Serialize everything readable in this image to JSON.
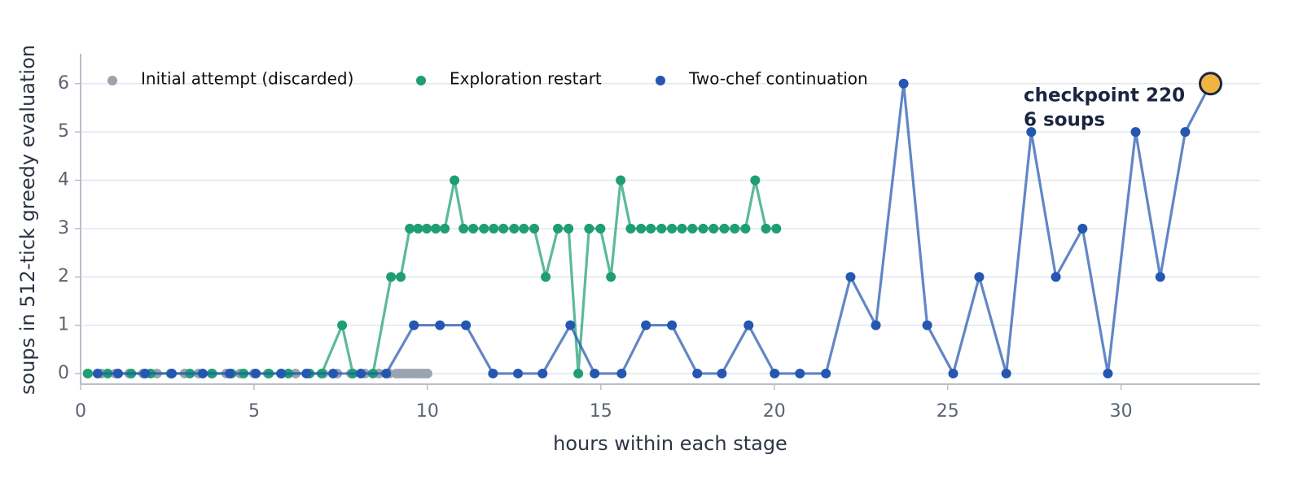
{
  "chart_data": {
    "type": "line",
    "xlabel": "hours within each stage",
    "ylabel": "soups in 512-tick greedy evaluation",
    "xlim": [
      0,
      34
    ],
    "xticks": [
      0,
      5,
      10,
      15,
      20,
      25,
      30
    ],
    "ylim": [
      -0.22,
      6.62
    ],
    "yticks": [
      0,
      1,
      2,
      3,
      4,
      5,
      6
    ],
    "grid": true,
    "legend": "upper-left",
    "series": [
      {
        "name": "Initial attempt (discarded)",
        "color": "#9aa3b0",
        "line": false,
        "x": [
          0.2,
          0.6,
          1.0,
          1.4,
          1.8,
          2.2,
          2.6,
          3.0,
          3.4,
          3.8,
          4.2,
          4.6,
          5.0,
          5.4,
          5.8,
          6.2,
          6.6,
          7.0,
          7.4,
          7.8,
          8.2,
          8.6,
          8.9,
          9.1,
          9.2,
          9.3,
          9.4,
          9.5,
          9.6,
          9.7,
          9.8,
          9.9,
          10.0
        ],
        "values": [
          0,
          0,
          0,
          0,
          0,
          0,
          0,
          0,
          0,
          0,
          0,
          0,
          0,
          0,
          0,
          0,
          0,
          0,
          0,
          0,
          0,
          0,
          0,
          0,
          0,
          0,
          0,
          0,
          0,
          0,
          0,
          0,
          0
        ]
      },
      {
        "name": "Exploration restart",
        "color": "#1e9e72",
        "line": true,
        "x": [
          0.21,
          0.78,
          1.46,
          2.02,
          2.61,
          3.15,
          3.78,
          4.35,
          4.7,
          5.43,
          5.99,
          6.6,
          6.95,
          7.54,
          7.85,
          8.43,
          8.95,
          9.23,
          9.49,
          9.73,
          9.98,
          10.24,
          10.5,
          10.78,
          11.04,
          11.32,
          11.63,
          11.91,
          12.19,
          12.5,
          12.78,
          13.08,
          13.41,
          13.76,
          14.07,
          14.35,
          14.66,
          14.99,
          15.29,
          15.57,
          15.86,
          16.16,
          16.44,
          16.75,
          17.05,
          17.34,
          17.64,
          17.95,
          18.25,
          18.56,
          18.86,
          19.17,
          19.45,
          19.76,
          20.06
        ],
        "values": [
          0,
          0,
          0,
          0,
          0,
          0,
          0,
          0,
          0,
          0,
          0,
          0,
          0,
          1,
          0,
          0,
          2,
          2,
          3,
          3,
          3,
          3,
          3,
          4,
          3,
          3,
          3,
          3,
          3,
          3,
          3,
          3,
          2,
          3,
          3,
          0,
          3,
          3,
          2,
          4,
          3,
          3,
          3,
          3,
          3,
          3,
          3,
          3,
          3,
          3,
          3,
          3,
          4,
          3,
          3
        ]
      },
      {
        "name": "Two-chef continuation",
        "color": "#2557b0",
        "line": true,
        "x": [
          0.49,
          1.08,
          1.86,
          2.63,
          3.52,
          4.3,
          5.05,
          5.78,
          6.51,
          7.28,
          8.08,
          8.81,
          9.61,
          10.36,
          11.11,
          11.89,
          12.61,
          13.32,
          14.12,
          14.82,
          15.6,
          16.3,
          17.05,
          17.78,
          18.49,
          19.26,
          20.01,
          20.74,
          21.49,
          22.2,
          22.93,
          23.73,
          24.41,
          25.16,
          25.91,
          26.69,
          27.41,
          28.12,
          28.89,
          29.62,
          30.42,
          31.13,
          31.85,
          32.58
        ],
        "values": [
          0,
          0,
          0,
          0,
          0,
          0,
          0,
          0,
          0,
          0,
          0,
          0,
          1,
          1,
          1,
          0,
          0,
          0,
          1,
          0,
          0,
          1,
          1,
          0,
          0,
          1,
          0,
          0,
          0,
          2,
          1,
          6,
          1,
          0,
          2,
          0,
          5,
          2,
          3,
          0,
          5,
          2,
          5,
          6
        ]
      }
    ],
    "highlight": {
      "x": 32.58,
      "y": 6,
      "color": "#f0b541",
      "label": [
        "checkpoint 220",
        "6 soups"
      ]
    }
  }
}
